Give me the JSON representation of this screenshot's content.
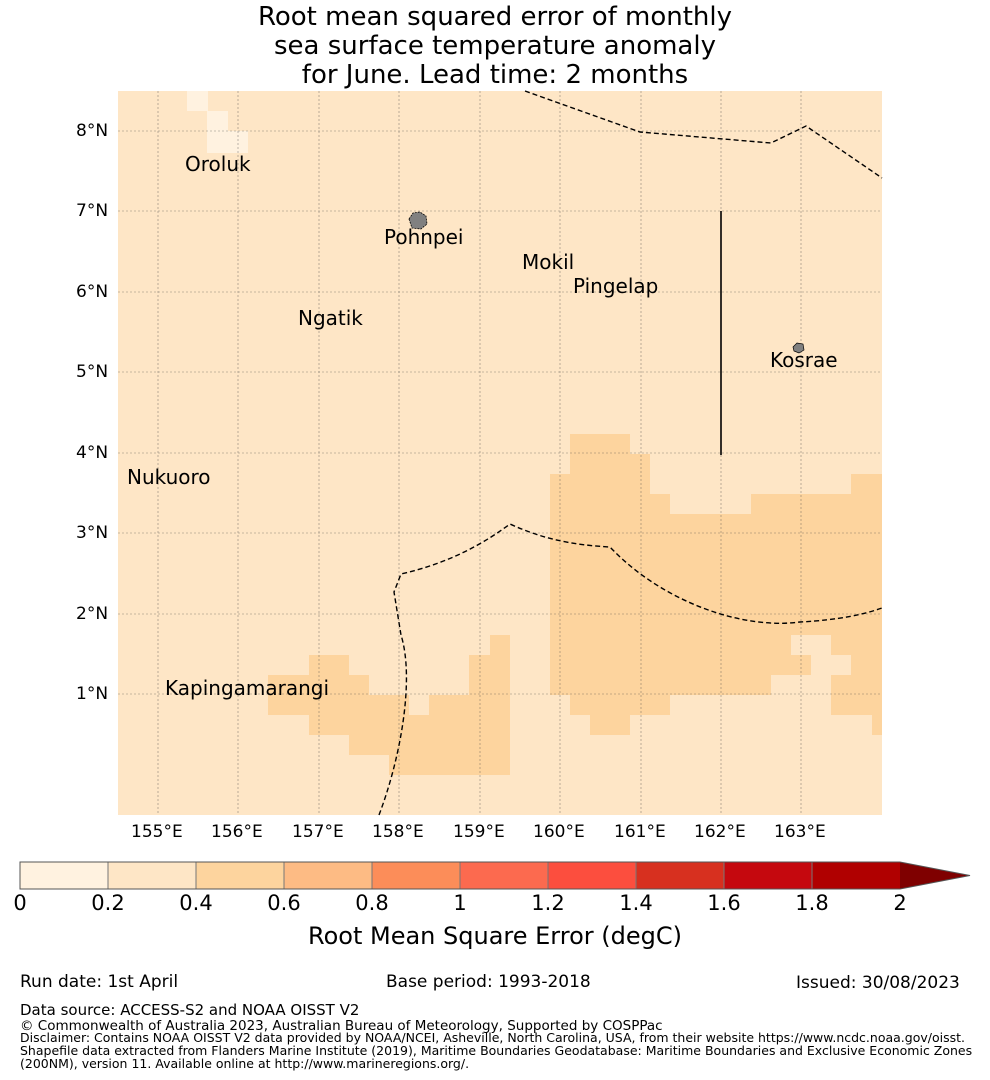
{
  "title": {
    "line1": "Root mean squared error of monthly",
    "line2": "sea surface temperature anomaly",
    "line3": "for June. Lead time: 2 months"
  },
  "map": {
    "lon_range": [
      154.5,
      164.0
    ],
    "lat_range": [
      -0.5,
      8.5
    ],
    "lon_ticks": [
      "155°E",
      "156°E",
      "157°E",
      "158°E",
      "159°E",
      "160°E",
      "161°E",
      "162°E",
      "163°E"
    ],
    "lat_ticks": [
      "8°N",
      "7°N",
      "6°N",
      "5°N",
      "4°N",
      "3°N",
      "2°N",
      "1°N"
    ],
    "background_bin_color": "#fee6c6",
    "places": [
      "Oroluk",
      "Pohnpei",
      "Mokil",
      "Pingelap",
      "Ngatik",
      "Kosrae",
      "Nukuoro",
      "Kapingamarangi"
    ],
    "rmse_bins": {
      "0.0-0.2": "light cells near Oroluk (155.4-156.1E, 7.3-8.5N)",
      "0.4-0.6": "zones south-west near Kapingamarangi and east from 159.9E to 164E between 0.5N and 4.2N"
    }
  },
  "colorbar": {
    "label": "Root Mean Square Error (degC)",
    "ticks": [
      "0",
      "0.2",
      "0.4",
      "0.6",
      "0.8",
      "1",
      "1.2",
      "1.4",
      "1.6",
      "1.8",
      "2"
    ],
    "colors": [
      "#fff2e0",
      "#fee6c6",
      "#fdd49e",
      "#fdbb84",
      "#fc8d59",
      "#fc6a4f",
      "#fc4e3e",
      "#d7301f",
      "#c5080e",
      "#b00000"
    ],
    "extend_color": "#7f0000"
  },
  "footer": {
    "run_date": "Run date: 1st April",
    "base_period": "Base period: 1993-2018",
    "issued": "Issued: 30/08/2023",
    "data_source": "Data source: ACCESS-S2 and NOAA OISST V2",
    "copyright": "© Commonwealth of Australia 2023, Australian Bureau of Meteorology, Supported by COSPPac",
    "disclaimer1": "Disclaimer: Contains NOAA OISST V2 data provided by NOAA/NCEI, Asheville, North Carolina, USA, from their website https://www.ncdc.noaa.gov/oisst.",
    "disclaimer2": "Shapefile data extracted from Flanders Marine Institute (2019), Maritime Boundaries Geodatabase: Maritime Boundaries and Exclusive Economic Zones",
    "disclaimer3": "(200NM), version 11. Available online at http://www.marineregions.org/."
  }
}
